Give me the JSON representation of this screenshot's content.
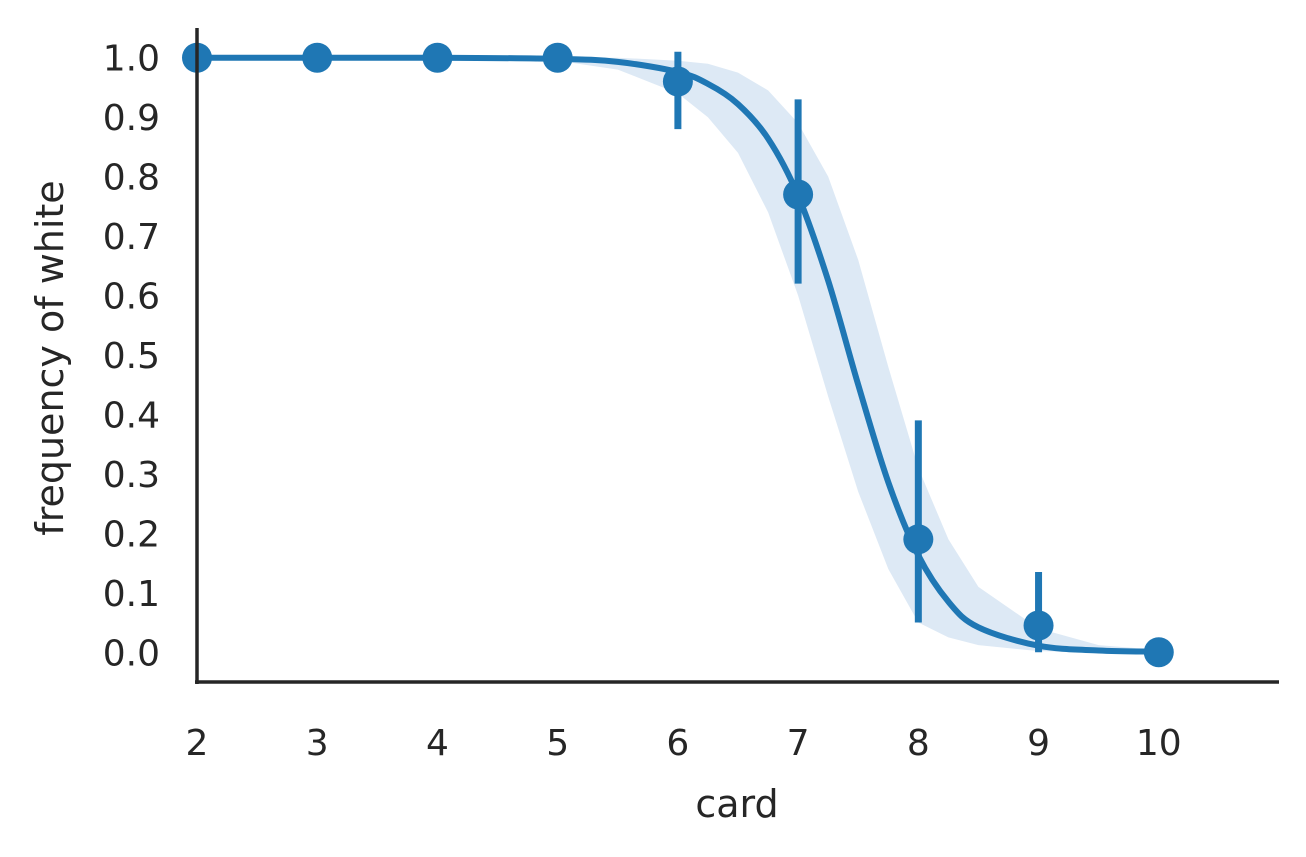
{
  "chart_data": {
    "type": "scatter",
    "xlabel": "card",
    "ylabel": "frequency of white",
    "xlim": [
      2,
      11
    ],
    "ylim": [
      -0.05,
      1.05
    ],
    "x_ticks": [
      2,
      3,
      4,
      5,
      6,
      7,
      8,
      9,
      10
    ],
    "x_tick_labels": [
      "2",
      "3",
      "4",
      "5",
      "6",
      "7",
      "8",
      "9",
      "10"
    ],
    "y_ticks": [
      0.0,
      0.1,
      0.2,
      0.3,
      0.4,
      0.5,
      0.6,
      0.7,
      0.8,
      0.9,
      1.0
    ],
    "y_tick_labels": [
      "0.0",
      "0.1",
      "0.2",
      "0.3",
      "0.4",
      "0.5",
      "0.6",
      "0.7",
      "0.8",
      "0.9",
      "1.0"
    ],
    "grid": false,
    "color": "#1f77b4",
    "band_color": "#dde9f5",
    "points": {
      "x": [
        2,
        3,
        4,
        5,
        6,
        7,
        8,
        9,
        10
      ],
      "y": [
        1.0,
        1.0,
        1.0,
        1.0,
        0.96,
        0.77,
        0.19,
        0.045,
        0.0
      ],
      "ci_low": [
        1.0,
        1.0,
        1.0,
        1.0,
        0.88,
        0.62,
        0.05,
        0.0,
        0.0
      ],
      "ci_high": [
        1.0,
        1.0,
        1.0,
        1.0,
        1.01,
        0.93,
        0.39,
        0.135,
        0.0
      ]
    },
    "fit_curve": {
      "x": [
        2,
        3,
        4,
        5,
        5.5,
        6,
        6.25,
        6.5,
        6.75,
        7,
        7.25,
        7.5,
        7.75,
        8,
        8.25,
        8.5,
        9,
        9.5,
        10
      ],
      "y": [
        1.0,
        1.0,
        1.0,
        0.998,
        0.993,
        0.976,
        0.956,
        0.922,
        0.864,
        0.768,
        0.625,
        0.45,
        0.286,
        0.163,
        0.085,
        0.042,
        0.011,
        0.003,
        0.001
      ]
    },
    "fit_band": {
      "x": [
        2,
        3,
        4,
        5,
        5.5,
        6,
        6.25,
        6.5,
        6.75,
        7,
        7.25,
        7.5,
        7.75,
        8,
        8.25,
        8.5,
        9,
        9.5,
        10
      ],
      "lower": [
        1.0,
        1.0,
        1.0,
        0.995,
        0.98,
        0.94,
        0.9,
        0.84,
        0.74,
        0.6,
        0.43,
        0.27,
        0.14,
        0.05,
        0.025,
        0.012,
        0.002,
        0.0,
        0.0
      ],
      "upper": [
        1.0,
        1.0,
        1.0,
        1.0,
        1.0,
        0.995,
        0.99,
        0.975,
        0.945,
        0.89,
        0.8,
        0.66,
        0.48,
        0.31,
        0.19,
        0.11,
        0.04,
        0.012,
        0.004
      ]
    }
  }
}
